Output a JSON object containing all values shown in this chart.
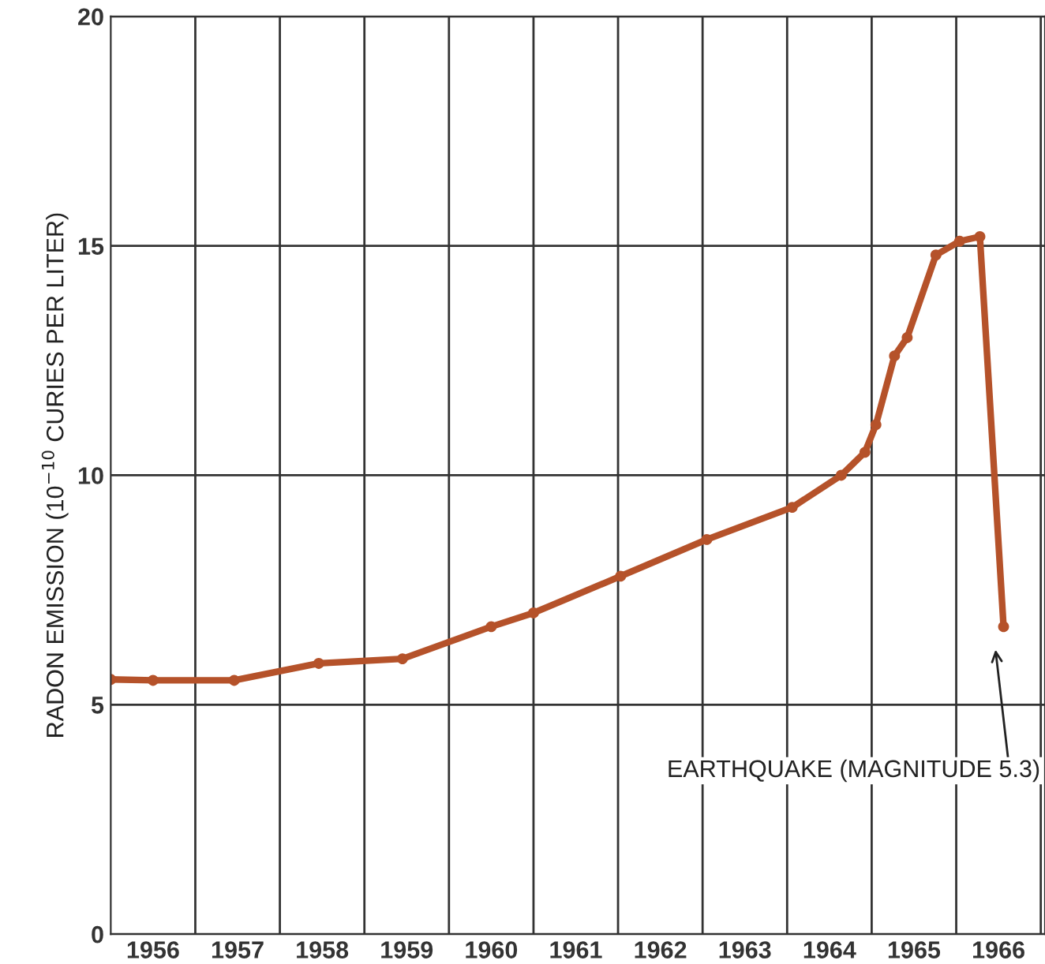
{
  "chart_data": {
    "type": "line",
    "ylabel": "RADON EMISSION (10$^{−10}$ CURIES PER LITER)",
    "x": [
      1956.0,
      1956.5,
      1957.46,
      1958.46,
      1959.45,
      1960.5,
      1961.0,
      1962.03,
      1963.05,
      1964.06,
      1964.64,
      1964.92,
      1965.05,
      1965.27,
      1965.42,
      1965.76,
      1966.04,
      1966.28,
      1966.56
    ],
    "series": [
      {
        "color": "#b5522a",
        "values": [
          5.55,
          5.53,
          5.53,
          5.9,
          6.0,
          6.7,
          7.0,
          7.8,
          8.6,
          9.3,
          10.0,
          10.5,
          11.1,
          12.6,
          13.0,
          14.8,
          15.1,
          15.2,
          6.7
        ]
      }
    ],
    "xlim": [
      1956,
      1967.05
    ],
    "xticks": [
      {
        "value": 1956.5,
        "label": "1956"
      },
      {
        "value": 1957.5,
        "label": "1957"
      },
      {
        "value": 1958.5,
        "label": "1958"
      },
      {
        "value": 1959.5,
        "label": "1959"
      },
      {
        "value": 1960.5,
        "label": "1960"
      },
      {
        "value": 1961.5,
        "label": "1961"
      },
      {
        "value": 1962.5,
        "label": "1962"
      },
      {
        "value": 1963.5,
        "label": "1963"
      },
      {
        "value": 1964.5,
        "label": "1964"
      },
      {
        "value": 1965.5,
        "label": "1965"
      },
      {
        "value": 1966.5,
        "label": "1966"
      }
    ],
    "ylim": [
      0,
      20
    ],
    "yticks": [
      0,
      5,
      10,
      15,
      20
    ],
    "grid": true,
    "marker": "circle",
    "line_style": "solid",
    "annotations": [
      "EARTHQUAKE (MAGNITUDE 5.3)"
    ]
  }
}
